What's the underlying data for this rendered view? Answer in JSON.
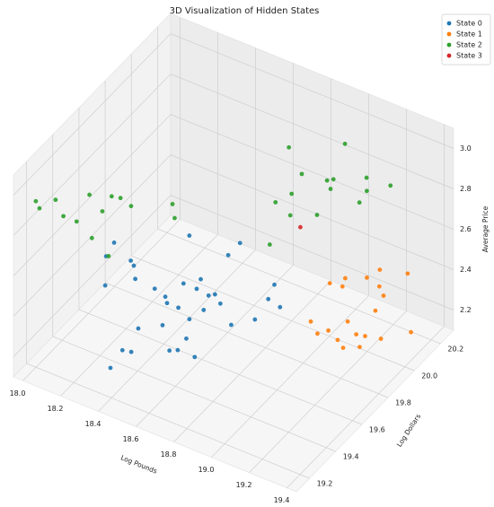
{
  "chart_data": {
    "type": "scatter3d",
    "title": "3D Visualization of Hidden States",
    "xlabel": "Log Pounds",
    "ylabel": "Log Dollars",
    "zlabel": "Average Price",
    "xlim": [
      17.95,
      19.45
    ],
    "ylim": [
      19.1,
      20.3
    ],
    "zlim": [
      2.1,
      3.1
    ],
    "xticks": [
      {
        "value": 18,
        "label": "18.0"
      },
      18.2,
      18.4,
      18.6,
      18.8,
      {
        "value": 19,
        "label": "19.0"
      },
      19.2,
      19.4
    ],
    "yticks": [
      19.2,
      19.4,
      19.6,
      19.8,
      {
        "value": 20,
        "label": "20.0"
      },
      20.2
    ],
    "zticks": [
      2.2,
      2.4,
      2.6,
      2.8,
      {
        "value": 3,
        "label": "3.0"
      }
    ],
    "grid": true,
    "legend": "upper right",
    "series": [
      {
        "name": "State 0",
        "color": "#1f77b4",
        "x": [
          18.54,
          18.32,
          18.22,
          18.19,
          18.06,
          18.08,
          18.2,
          18.11,
          18.31,
          18.38,
          18.4,
          18.45,
          18.47,
          18.54,
          18.56,
          18.47,
          18.41,
          18.78,
          18.75,
          18.54,
          18.48,
          18.5,
          18.54,
          18.4,
          18.66,
          18.73,
          18.78,
          18.34,
          18.38,
          18.36,
          18.52,
          18.55,
          18.54,
          18.64,
          18.32
        ],
        "y": [
          19.89,
          19.91,
          19.63,
          19.65,
          19.71,
          19.62,
          19.67,
          19.57,
          19.66,
          19.64,
          19.75,
          19.81,
          19.75,
          19.74,
          19.76,
          19.61,
          19.61,
          19.85,
          19.94,
          19.98,
          19.68,
          19.76,
          19.83,
          19.59,
          19.74,
          19.82,
          19.94,
          19.37,
          19.38,
          19.25,
          19.47,
          19.49,
          19.57,
          19.49,
          19.52
        ],
        "z": [
          2.4,
          2.4,
          2.4,
          2.4,
          2.4,
          2.4,
          2.3,
          2.3,
          2.3,
          2.3,
          2.3,
          2.3,
          2.3,
          2.3,
          2.3,
          2.3,
          2.3,
          2.3,
          2.3,
          2.4,
          2.2,
          2.2,
          2.2,
          2.2,
          2.2,
          2.2,
          2.2,
          2.2,
          2.2,
          2.2,
          2.2,
          2.2,
          2.2,
          2.2,
          2.2
        ]
      },
      {
        "name": "State 1",
        "color": "#ff7f0e",
        "x": [
          18.95,
          19.02,
          19.05,
          19.09,
          19.17,
          19.12,
          19.17,
          19.21,
          19.28,
          19.37,
          19.23,
          19.03,
          19.07,
          19.15,
          19.17,
          19.29,
          19.23,
          19.28,
          19.23,
          19.09
        ],
        "y": [
          19.93,
          19.88,
          19.92,
          20.01,
          19.96,
          19.89,
          19.86,
          19.97,
          19.99,
          20.09,
          19.9,
          19.96,
          20.02,
          20.07,
          20.14,
          20.18,
          20.05,
          20.01,
          20.02,
          19.97
        ],
        "z": [
          2.2,
          2.2,
          2.2,
          2.2,
          2.2,
          2.2,
          2.2,
          2.2,
          2.2,
          2.2,
          2.2,
          2.4,
          2.4,
          2.4,
          2.4,
          2.4,
          2.4,
          2.4,
          2.3,
          2.4
        ]
      },
      {
        "name": "State 2",
        "color": "#2ca02c",
        "x": [
          18.02,
          18.06,
          18.09,
          18.18,
          18.25,
          18.2,
          18.31,
          18.29,
          18.4,
          18.55,
          18.61,
          18.22,
          18.35,
          18.33,
          18.82,
          19.02,
          18.93,
          19.05,
          19.07,
          19.19,
          19.31,
          19.24,
          18.89,
          19.02,
          19.18,
          18.86,
          18.89,
          18.99,
          18.92
        ],
        "y": [
          19.17,
          19.14,
          19.22,
          19.15,
          19.15,
          19.32,
          19.26,
          19.36,
          19.35,
          19.45,
          19.38,
          19.31,
          19.25,
          19.37,
          19.95,
          20.09,
          19.89,
          19.91,
          19.93,
          20.01,
          20.02,
          19.94,
          19.87,
          19.98,
          19.97,
          19.79,
          19.86,
          19.92,
          19.66
        ],
        "z": [
          2.95,
          2.95,
          2.95,
          2.95,
          2.95,
          2.95,
          2.95,
          2.95,
          2.95,
          2.95,
          2.95,
          2.75,
          2.75,
          2.95,
          3.0,
          3.0,
          2.95,
          2.95,
          2.95,
          2.95,
          2.95,
          2.95,
          2.85,
          2.85,
          2.85,
          2.85,
          2.75,
          2.75,
          2.75
        ]
      },
      {
        "name": "State 3",
        "color": "#d62728",
        "x": [
          18.86
        ],
        "y": [
          19.98
        ],
        "z": [
          2.6
        ]
      }
    ]
  }
}
